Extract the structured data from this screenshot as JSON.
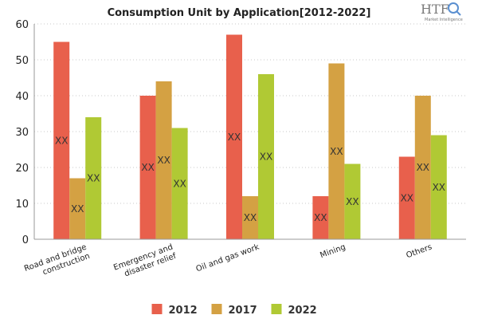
{
  "chart_data": {
    "type": "bar",
    "title": "Consumption Unit by  Application[2012-2022]",
    "categories": [
      "Road and bridge construction",
      "Emergency and disaster relief",
      "Oil and gas work",
      "Mining",
      "Others"
    ],
    "category_lines": [
      [
        "Road and bridge",
        "construction"
      ],
      [
        "Emergency and",
        "disaster relief"
      ],
      [
        "Oil and gas work"
      ],
      [
        "Mining"
      ],
      [
        "Others"
      ]
    ],
    "series": [
      {
        "name": "2012",
        "color": "#e8604c",
        "values": [
          55,
          40,
          57,
          12,
          23
        ],
        "labels": [
          "XX",
          "XX",
          "XX",
          "XX",
          "XX"
        ]
      },
      {
        "name": "2017",
        "color": "#d4a143",
        "values": [
          17,
          44,
          12,
          49,
          40
        ],
        "labels": [
          "XX",
          "XX",
          "XX",
          "XX",
          "XX"
        ]
      },
      {
        "name": "2022",
        "color": "#b0c934",
        "values": [
          34,
          31,
          46,
          21,
          29
        ],
        "labels": [
          "XX",
          "XX",
          "XX",
          "XX",
          "XX"
        ]
      }
    ],
    "ylim": [
      0,
      60
    ],
    "yticks": [
      0,
      10,
      20,
      30,
      40,
      50,
      60
    ],
    "grid": true,
    "legend_position": "bottom",
    "xlabel": "",
    "ylabel": ""
  },
  "logo": {
    "text": "HTF",
    "subtitle": "Market Intelligence",
    "icon": "magnifier-icon"
  }
}
